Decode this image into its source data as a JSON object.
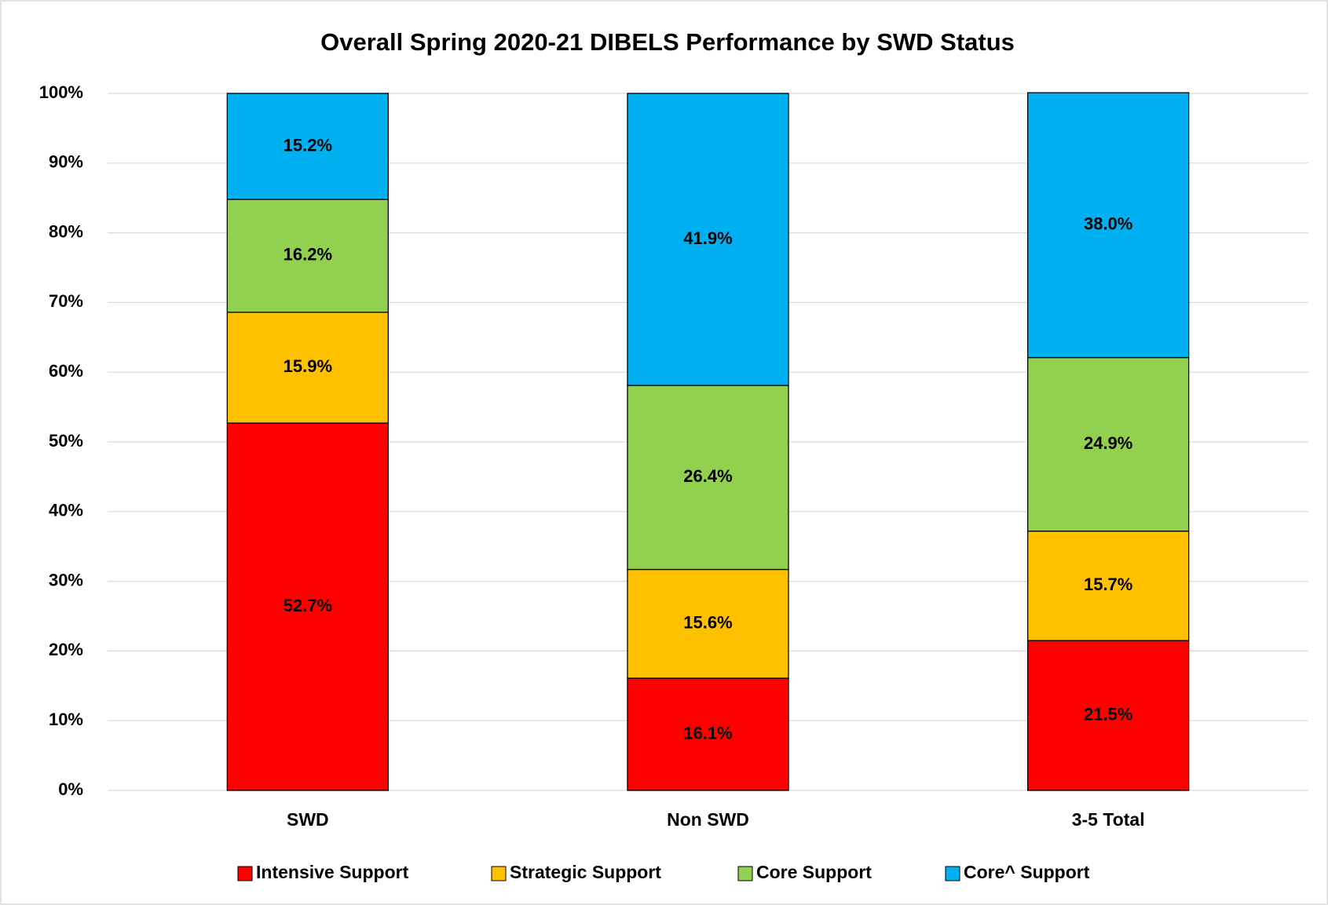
{
  "chart_data": {
    "type": "stacked_bar",
    "title": "Overall Spring 2020-21 DIBELS Performance by SWD Status",
    "categories": [
      "SWD",
      "Non SWD",
      "3-5 Total"
    ],
    "series": [
      {
        "name": "Intensive Support",
        "color": "#ff0000",
        "values": [
          52.7,
          16.1,
          21.5
        ],
        "value_labels": [
          "52.7%",
          "16.1%",
          "21.5%"
        ]
      },
      {
        "name": "Strategic Support",
        "color": "#ffc000",
        "values": [
          15.9,
          15.6,
          15.7
        ],
        "value_labels": [
          "15.9%",
          "15.6%",
          "15.7%"
        ]
      },
      {
        "name": "Core Support",
        "color": "#92d050",
        "values": [
          16.2,
          26.4,
          24.9
        ],
        "value_labels": [
          "16.2%",
          "26.4%",
          "24.9%"
        ]
      },
      {
        "name": "Core^ Support",
        "color": "#00b0f0",
        "values": [
          15.2,
          41.9,
          38.0
        ],
        "value_labels": [
          "15.2%",
          "41.9%",
          "38.0%"
        ]
      }
    ],
    "ylim": [
      0,
      100
    ],
    "yticks": [
      {
        "value": 0,
        "label": "0%"
      },
      {
        "value": 10,
        "label": "10%"
      },
      {
        "value": 20,
        "label": "20%"
      },
      {
        "value": 30,
        "label": "30%"
      },
      {
        "value": 40,
        "label": "40%"
      },
      {
        "value": 50,
        "label": "50%"
      },
      {
        "value": 60,
        "label": "60%"
      },
      {
        "value": 70,
        "label": "70%"
      },
      {
        "value": 80,
        "label": "80%"
      },
      {
        "value": 90,
        "label": "90%"
      },
      {
        "value": 100,
        "label": "100%"
      }
    ],
    "grid": true,
    "legend": "bottom"
  }
}
